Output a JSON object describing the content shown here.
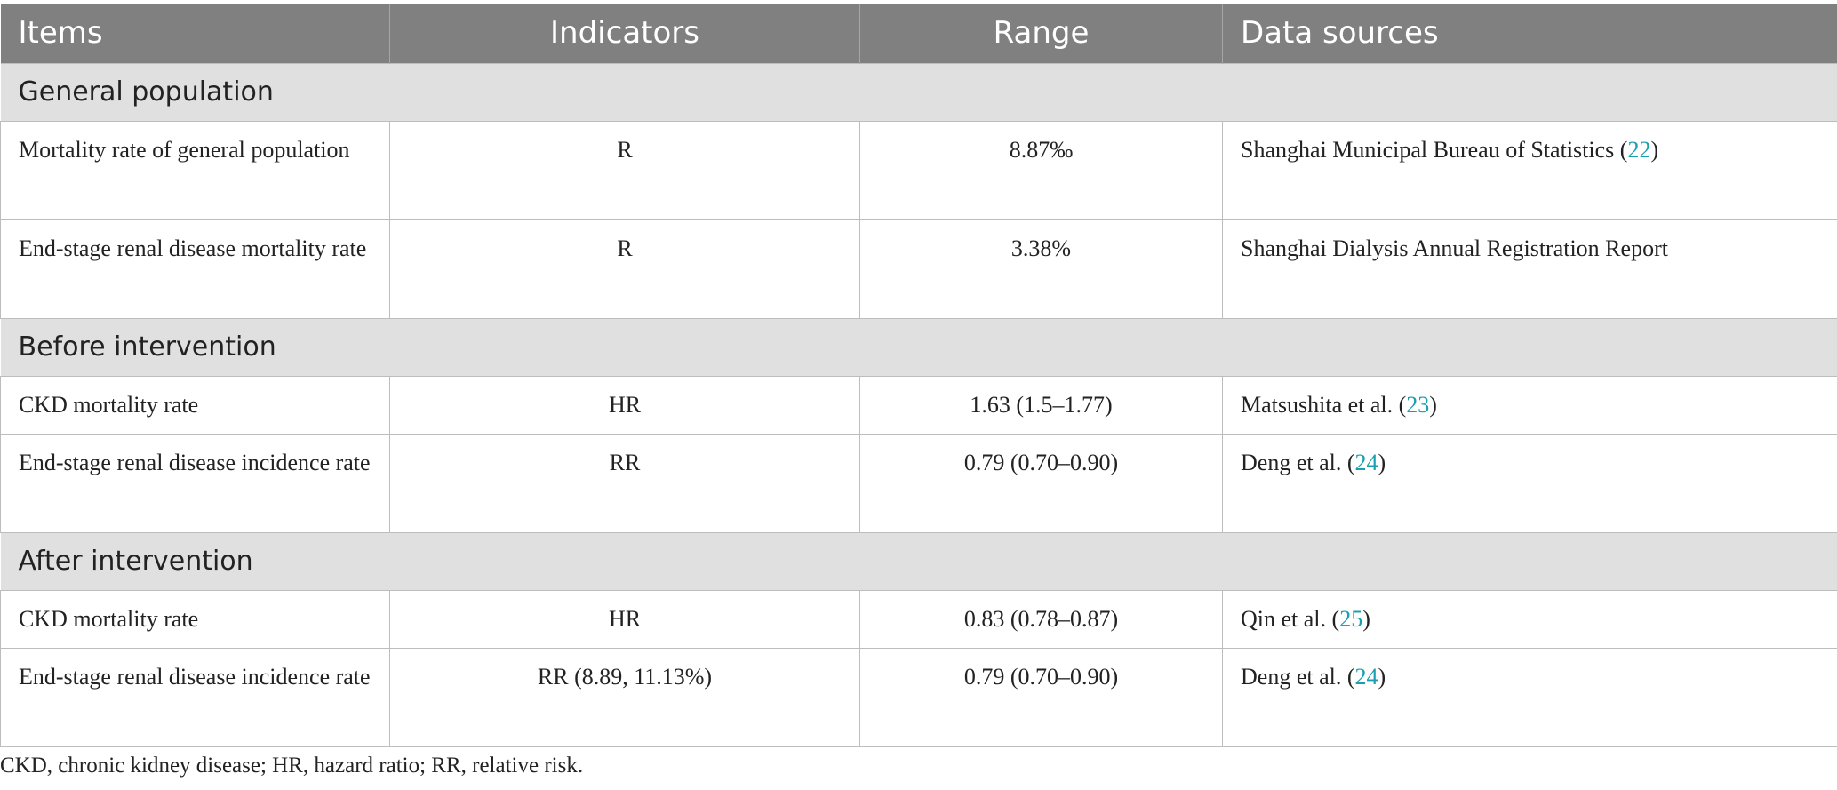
{
  "header": {
    "items": "Items",
    "indicators": "Indicators",
    "range": "Range",
    "data_sources": "Data sources"
  },
  "sections": [
    {
      "title": "General population",
      "rows": [
        {
          "item": "Mortality rate of general population",
          "indicator": "R",
          "range": "8.87‰",
          "source": "Shanghai Municipal Bureau of Statistics (",
          "ref": "22",
          "close": ")"
        },
        {
          "item": "End-stage renal disease mortality rate",
          "indicator": "R",
          "range": "3.38%",
          "source": "Shanghai Dialysis Annual Registration Report",
          "ref": "",
          "close": ""
        }
      ]
    },
    {
      "title": "Before intervention",
      "rows": [
        {
          "item": "CKD mortality rate",
          "indicator": "HR",
          "range": "1.63 (1.5–1.77)",
          "source": "Matsushita et al. (",
          "ref": "23",
          "close": ")"
        },
        {
          "item": "End-stage renal disease incidence rate",
          "indicator": "RR",
          "range": "0.79 (0.70–0.90)",
          "source": "Deng et al. (",
          "ref": "24",
          "close": ")"
        }
      ]
    },
    {
      "title": "After intervention",
      "rows": [
        {
          "item": "CKD mortality rate",
          "indicator": "HR",
          "range": "0.83 (0.78–0.87)",
          "source": "Qin et al. (",
          "ref": "25",
          "close": ")"
        },
        {
          "item": "End-stage renal disease incidence rate",
          "indicator": "RR (8.89, 11.13%)",
          "range": "0.79 (0.70–0.90)",
          "source": "Deng et al. (",
          "ref": "24",
          "close": ")"
        }
      ]
    }
  ],
  "footnote": "CKD, chronic kidney disease; HR, hazard ratio; RR, relative risk.",
  "colors": {
    "header_bg": "#808080",
    "section_bg": "#e0e0e0",
    "ref_link": "#1a9fb0"
  }
}
